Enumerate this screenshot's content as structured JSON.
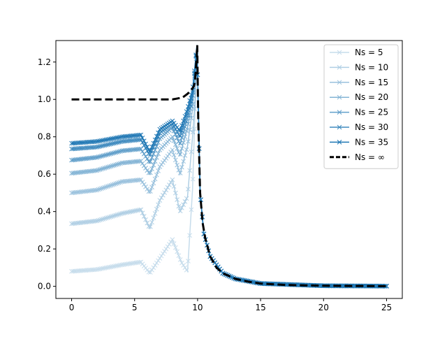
{
  "chart_data": {
    "type": "line",
    "title": "",
    "xlabel": "",
    "ylabel": "",
    "xlim": [
      -1.25,
      26.25
    ],
    "ylim": [
      -0.065,
      1.315
    ],
    "xticks": [
      0,
      5,
      10,
      15,
      20,
      25
    ],
    "yticks": [
      0.0,
      0.2,
      0.4,
      0.6,
      0.8,
      1.0,
      1.2
    ],
    "xtick_labels": [
      "0",
      "5",
      "10",
      "15",
      "20",
      "25"
    ],
    "ytick_labels": [
      "0.0",
      "0.2",
      "0.4",
      "0.6",
      "0.8",
      "1.0",
      "1.2"
    ],
    "grid": false,
    "legend_position": "top-right",
    "marker": "x",
    "series_color": "#1f77b4",
    "reference_color": "#000000",
    "x_sample_step": 0.125,
    "series": [
      {
        "name": "Ns = 5",
        "opacity": 0.25,
        "points": [
          [
            0,
            0.08
          ],
          [
            2,
            0.09
          ],
          [
            4,
            0.115
          ],
          [
            5.5,
            0.13
          ],
          [
            6.2,
            0.07
          ],
          [
            7,
            0.15
          ],
          [
            8,
            0.25
          ],
          [
            8.7,
            0.13
          ],
          [
            9.2,
            0.08
          ],
          [
            9.6,
            0.52
          ],
          [
            9.8,
            0.95
          ],
          [
            9.95,
            1.29
          ],
          [
            10.2,
            0.5
          ],
          [
            10.5,
            0.28
          ],
          [
            11,
            0.16
          ],
          [
            12,
            0.07
          ],
          [
            13,
            0.04
          ],
          [
            15,
            0.015
          ],
          [
            20,
            0.003
          ],
          [
            25,
            0.001
          ]
        ]
      },
      {
        "name": "Ns = 10",
        "opacity": 0.35,
        "points": [
          [
            0,
            0.335
          ],
          [
            2,
            0.35
          ],
          [
            4,
            0.39
          ],
          [
            5.5,
            0.41
          ],
          [
            6.2,
            0.31
          ],
          [
            7,
            0.46
          ],
          [
            8,
            0.57
          ],
          [
            8.6,
            0.4
          ],
          [
            9.2,
            0.48
          ],
          [
            9.6,
            0.8
          ],
          [
            9.8,
            1.0
          ],
          [
            9.95,
            1.29
          ],
          [
            10.2,
            0.5
          ],
          [
            10.5,
            0.28
          ],
          [
            11,
            0.16
          ],
          [
            12,
            0.07
          ],
          [
            13,
            0.04
          ],
          [
            15,
            0.015
          ],
          [
            20,
            0.003
          ],
          [
            25,
            0.001
          ]
        ]
      },
      {
        "name": "Ns = 15",
        "opacity": 0.45,
        "points": [
          [
            0,
            0.5
          ],
          [
            2,
            0.515
          ],
          [
            4,
            0.56
          ],
          [
            5.5,
            0.57
          ],
          [
            6.2,
            0.5
          ],
          [
            7,
            0.64
          ],
          [
            8,
            0.73
          ],
          [
            8.6,
            0.6
          ],
          [
            9.2,
            0.75
          ],
          [
            9.6,
            0.95
          ],
          [
            9.95,
            1.29
          ],
          [
            10.2,
            0.5
          ],
          [
            10.5,
            0.28
          ],
          [
            11,
            0.16
          ],
          [
            12,
            0.07
          ],
          [
            13,
            0.04
          ],
          [
            15,
            0.015
          ],
          [
            20,
            0.003
          ],
          [
            25,
            0.001
          ]
        ]
      },
      {
        "name": "Ns = 20",
        "opacity": 0.55,
        "points": [
          [
            0,
            0.605
          ],
          [
            2,
            0.62
          ],
          [
            4,
            0.66
          ],
          [
            5.5,
            0.67
          ],
          [
            6.2,
            0.6
          ],
          [
            7,
            0.73
          ],
          [
            8,
            0.8
          ],
          [
            8.6,
            0.7
          ],
          [
            9.2,
            0.85
          ],
          [
            9.6,
            1.0
          ],
          [
            9.95,
            1.29
          ],
          [
            10.2,
            0.5
          ],
          [
            10.5,
            0.28
          ],
          [
            11,
            0.16
          ],
          [
            12,
            0.07
          ],
          [
            13,
            0.04
          ],
          [
            15,
            0.015
          ],
          [
            20,
            0.003
          ],
          [
            25,
            0.001
          ]
        ]
      },
      {
        "name": "Ns = 25",
        "opacity": 0.7,
        "points": [
          [
            0,
            0.675
          ],
          [
            2,
            0.69
          ],
          [
            4,
            0.725
          ],
          [
            5.5,
            0.735
          ],
          [
            6.2,
            0.66
          ],
          [
            7,
            0.79
          ],
          [
            8,
            0.85
          ],
          [
            8.6,
            0.76
          ],
          [
            9.2,
            0.9
          ],
          [
            9.6,
            1.02
          ],
          [
            9.95,
            1.29
          ],
          [
            10.2,
            0.5
          ],
          [
            10.5,
            0.28
          ],
          [
            11,
            0.16
          ],
          [
            12,
            0.07
          ],
          [
            13,
            0.04
          ],
          [
            15,
            0.015
          ],
          [
            20,
            0.003
          ],
          [
            25,
            0.001
          ]
        ]
      },
      {
        "name": "Ns = 30",
        "opacity": 0.85,
        "points": [
          [
            0,
            0.735
          ],
          [
            2,
            0.745
          ],
          [
            4,
            0.775
          ],
          [
            5.5,
            0.785
          ],
          [
            6.2,
            0.7
          ],
          [
            7,
            0.82
          ],
          [
            8,
            0.87
          ],
          [
            8.6,
            0.8
          ],
          [
            9.2,
            0.93
          ],
          [
            9.6,
            1.03
          ],
          [
            9.95,
            1.29
          ],
          [
            10.2,
            0.5
          ],
          [
            10.5,
            0.28
          ],
          [
            11,
            0.16
          ],
          [
            12,
            0.07
          ],
          [
            13,
            0.04
          ],
          [
            15,
            0.015
          ],
          [
            20,
            0.003
          ],
          [
            25,
            0.001
          ]
        ]
      },
      {
        "name": "Ns = 35",
        "opacity": 1.0,
        "points": [
          [
            0,
            0.765
          ],
          [
            2,
            0.775
          ],
          [
            4,
            0.8
          ],
          [
            5.5,
            0.81
          ],
          [
            6.2,
            0.72
          ],
          [
            7,
            0.84
          ],
          [
            8,
            0.885
          ],
          [
            8.6,
            0.83
          ],
          [
            9.2,
            0.95
          ],
          [
            9.6,
            1.05
          ],
          [
            9.95,
            1.29
          ],
          [
            10.2,
            0.5
          ],
          [
            10.5,
            0.28
          ],
          [
            11,
            0.16
          ],
          [
            12,
            0.07
          ],
          [
            13,
            0.04
          ],
          [
            15,
            0.015
          ],
          [
            20,
            0.003
          ],
          [
            25,
            0.001
          ]
        ]
      }
    ],
    "reference_series": {
      "name": "Ns = ∞",
      "style": "dashed",
      "points": [
        [
          0,
          1.0
        ],
        [
          8,
          1.0
        ],
        [
          8.8,
          1.01
        ],
        [
          9.2,
          1.03
        ],
        [
          9.5,
          1.05
        ],
        [
          9.7,
          1.07
        ],
        [
          9.8,
          1.1
        ],
        [
          9.9,
          1.2
        ],
        [
          9.97,
          1.29
        ],
        [
          10.05,
          0.9
        ],
        [
          10.2,
          0.5
        ],
        [
          10.4,
          0.34
        ],
        [
          10.6,
          0.26
        ],
        [
          11,
          0.16
        ],
        [
          11.5,
          0.1
        ],
        [
          12,
          0.07
        ],
        [
          13,
          0.04
        ],
        [
          14,
          0.025
        ],
        [
          15,
          0.015
        ],
        [
          17,
          0.007
        ],
        [
          20,
          0.003
        ],
        [
          25,
          0.001
        ]
      ]
    }
  }
}
